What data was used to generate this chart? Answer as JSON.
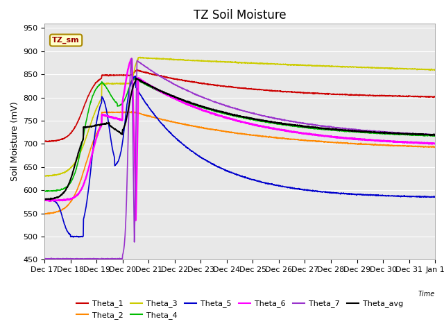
{
  "title": "TZ Soil Moisture",
  "ylabel": "Soil Moisture (mV)",
  "xlabel": "Time",
  "ylim": [
    450,
    960
  ],
  "yticks": [
    450,
    500,
    550,
    600,
    650,
    700,
    750,
    800,
    850,
    900,
    950
  ],
  "xtick_labels": [
    "Dec 17",
    "Dec 18",
    "Dec 19",
    "Dec 20",
    "Dec 21",
    "Dec 22",
    "Dec 23",
    "Dec 24",
    "Dec 25",
    "Dec 26",
    "Dec 27",
    "Dec 28",
    "Dec 29",
    "Dec 30",
    "Dec 31",
    "Jan 1"
  ],
  "legend_label": "TZ_sm",
  "colors": {
    "Theta_1": "#cc0000",
    "Theta_2": "#ff8800",
    "Theta_3": "#cccc00",
    "Theta_4": "#00bb00",
    "Theta_5": "#0000cc",
    "Theta_6": "#ff00ff",
    "Theta_7": "#9933cc",
    "Theta_avg": "#000000"
  },
  "background_color": "#e8e8e8",
  "title_fontsize": 12,
  "axis_label_fontsize": 9,
  "tick_fontsize": 8,
  "legend_fontsize": 8
}
